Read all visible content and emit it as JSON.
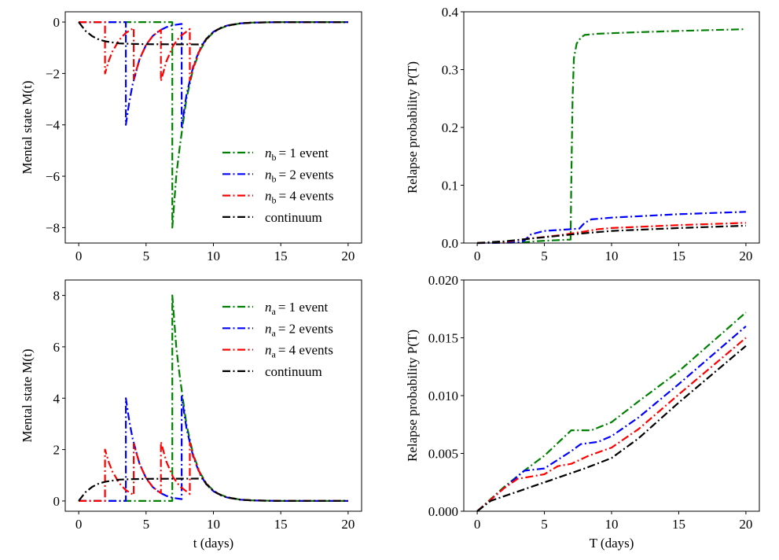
{
  "chart_data": [
    {
      "type": "line",
      "panel": "top-left",
      "ylabel": "Mental state M(t)",
      "xlabel": "",
      "xlim": [
        -1,
        21
      ],
      "ylim": [
        -8.6,
        0.4
      ],
      "xticks": [
        "0",
        "5",
        "10",
        "15",
        "20"
      ],
      "yticks": [
        "0",
        "−2",
        "−4",
        "−6",
        "−8"
      ],
      "ytick_values": [
        0,
        -2,
        -4,
        -6,
        -8
      ],
      "xtick_values": [
        0,
        5,
        10,
        15,
        20
      ],
      "legend_position": "lower-right",
      "series": [
        {
          "name": "n_b = 1 event",
          "legend": {
            "var": "n",
            "sub": "b",
            "text": "= 1 event"
          },
          "color": "#008000",
          "x": [
            0,
            6.95,
            6.95,
            7.25,
            7.5,
            8,
            8.5,
            9,
            9.5,
            10,
            10.5,
            11,
            12,
            13,
            15,
            20
          ],
          "y": [
            0,
            0,
            -8,
            -5.93,
            -4.85,
            -2.98,
            -1.81,
            -1.1,
            -0.67,
            -0.4,
            -0.25,
            -0.15,
            -0.05,
            -0.02,
            0,
            0
          ]
        },
        {
          "name": "n_b = 2 events",
          "legend": {
            "var": "n",
            "sub": "b",
            "text": "= 2 events"
          },
          "color": "#0000ff",
          "x": [
            0,
            3.5,
            3.5,
            3.75,
            4,
            4.5,
            5,
            5.5,
            6,
            6.5,
            7,
            7.64,
            7.64,
            8,
            8.5,
            9,
            9.5,
            10,
            10.5,
            11,
            12,
            13,
            15,
            20
          ],
          "y": [
            0,
            0,
            -4,
            -3.12,
            -2.43,
            -1.47,
            -0.89,
            -0.54,
            -0.33,
            -0.2,
            -0.12,
            -0.07,
            -4.07,
            -2.84,
            -1.72,
            -1.04,
            -0.63,
            -0.38,
            -0.23,
            -0.14,
            -0.05,
            -0.02,
            0,
            0
          ]
        },
        {
          "name": "n_b = 4 events",
          "legend": {
            "var": "n",
            "sub": "b",
            "text": "= 4 events"
          },
          "color": "#ff0000",
          "x": [
            0,
            1.95,
            1.95,
            2.25,
            2.5,
            3,
            3.5,
            4.08,
            4.08,
            4.5,
            5,
            5.5,
            6.1,
            6.1,
            6.5,
            7,
            7.5,
            8.25,
            8.25,
            8.5,
            9,
            9.5,
            10,
            10.5,
            11,
            12,
            13,
            15,
            20
          ],
          "y": [
            0,
            0,
            -2,
            -1.48,
            -1.15,
            -0.7,
            -0.42,
            -0.23,
            -2.23,
            -1.46,
            -0.89,
            -0.54,
            -0.3,
            -2.3,
            -1.54,
            -0.93,
            -0.57,
            -0.27,
            -2.27,
            -1.77,
            -1.07,
            -0.65,
            -0.39,
            -0.24,
            -0.14,
            -0.05,
            -0.02,
            0,
            0
          ]
        },
        {
          "name": "continuum",
          "legend": {
            "var": "",
            "sub": "",
            "text": "continuum"
          },
          "color": "#000000",
          "x": [
            0,
            0.5,
            1,
            1.5,
            2,
            3,
            4,
            5,
            9.2,
            9.5,
            10,
            10.5,
            11,
            12,
            13,
            15,
            20
          ],
          "y": [
            0,
            -0.34,
            -0.55,
            -0.68,
            -0.75,
            -0.83,
            -0.85,
            -0.86,
            -0.87,
            -0.64,
            -0.39,
            -0.24,
            -0.14,
            -0.05,
            -0.02,
            0,
            0
          ]
        }
      ]
    },
    {
      "type": "line",
      "panel": "top-right",
      "ylabel": "Relapse probability P(T)",
      "xlabel": "",
      "xlim": [
        -1,
        21
      ],
      "ylim": [
        0,
        0.4
      ],
      "xticks": [
        "0",
        "5",
        "10",
        "15",
        "20"
      ],
      "xtick_values": [
        0,
        5,
        10,
        15,
        20
      ],
      "yticks": [
        "0.0",
        "0.1",
        "0.2",
        "0.3",
        "0.4"
      ],
      "ytick_values": [
        0,
        0.1,
        0.2,
        0.3,
        0.4
      ],
      "series": [
        {
          "color": "#008000",
          "x": [
            0,
            3,
            5,
            6.95,
            7.0,
            7.1,
            7.2,
            7.4,
            7.7,
            8,
            9,
            11,
            15,
            20
          ],
          "y": [
            0,
            0.001,
            0.004,
            0.006,
            0.1,
            0.25,
            0.32,
            0.345,
            0.355,
            0.36,
            0.362,
            0.364,
            0.367,
            0.37
          ]
        },
        {
          "color": "#0000ff",
          "x": [
            0,
            3,
            3.5,
            4,
            5,
            7,
            7.6,
            8,
            8.5,
            10,
            15,
            20
          ],
          "y": [
            0,
            0.001,
            0.004,
            0.015,
            0.021,
            0.024,
            0.025,
            0.035,
            0.041,
            0.044,
            0.05,
            0.054
          ]
        },
        {
          "color": "#ff0000",
          "x": [
            0,
            2,
            4,
            6,
            8,
            9,
            10,
            15,
            20
          ],
          "y": [
            0,
            0.002,
            0.008,
            0.013,
            0.02,
            0.024,
            0.026,
            0.031,
            0.035
          ]
        },
        {
          "color": "#000000",
          "x": [
            0,
            2,
            5,
            8,
            10,
            15,
            20
          ],
          "y": [
            0,
            0.003,
            0.01,
            0.017,
            0.021,
            0.026,
            0.03
          ]
        }
      ]
    },
    {
      "type": "line",
      "panel": "bottom-left",
      "ylabel": "Mental state M(t)",
      "xlabel": "t (days)",
      "xlim": [
        -1,
        21
      ],
      "ylim": [
        -0.4,
        8.6
      ],
      "xticks": [
        "0",
        "5",
        "10",
        "15",
        "20"
      ],
      "xtick_values": [
        0,
        5,
        10,
        15,
        20
      ],
      "yticks": [
        "0",
        "2",
        "4",
        "6",
        "8"
      ],
      "ytick_values": [
        0,
        2,
        4,
        6,
        8
      ],
      "legend_position": "upper-right",
      "series": [
        {
          "name": "n_a = 1 event",
          "legend": {
            "var": "n",
            "sub": "a",
            "text": "= 1 event"
          },
          "color": "#008000",
          "x": [
            0,
            6.95,
            6.95,
            7.25,
            7.5,
            8,
            8.5,
            9,
            9.5,
            10,
            10.5,
            11,
            12,
            13,
            15,
            20
          ],
          "y": [
            0,
            0,
            8,
            5.93,
            4.85,
            2.98,
            1.81,
            1.1,
            0.67,
            0.4,
            0.25,
            0.15,
            0.05,
            0.02,
            0,
            0
          ]
        },
        {
          "name": "n_a = 2 events",
          "legend": {
            "var": "n",
            "sub": "a",
            "text": "= 2 events"
          },
          "color": "#0000ff",
          "x": [
            0,
            3.5,
            3.5,
            3.75,
            4,
            4.5,
            5,
            5.5,
            6,
            6.5,
            7,
            7.64,
            7.64,
            8,
            8.5,
            9,
            9.5,
            10,
            10.5,
            11,
            12,
            13,
            15,
            20
          ],
          "y": [
            0,
            0,
            4,
            3.12,
            2.43,
            1.47,
            0.89,
            0.54,
            0.33,
            0.2,
            0.12,
            0.07,
            4.07,
            2.84,
            1.72,
            1.04,
            0.63,
            0.38,
            0.23,
            0.14,
            0.05,
            0.02,
            0,
            0
          ]
        },
        {
          "name": "n_a = 4 events",
          "legend": {
            "var": "n",
            "sub": "a",
            "text": "= 4 events"
          },
          "color": "#ff0000",
          "x": [
            0,
            1.95,
            1.95,
            2.25,
            2.5,
            3,
            3.5,
            4.08,
            4.08,
            4.5,
            5,
            5.5,
            6.1,
            6.1,
            6.5,
            7,
            7.5,
            8.25,
            8.25,
            8.5,
            9,
            9.5,
            10,
            10.5,
            11,
            12,
            13,
            15,
            20
          ],
          "y": [
            0,
            0,
            2,
            1.48,
            1.15,
            0.7,
            0.42,
            0.23,
            2.23,
            1.46,
            0.89,
            0.54,
            0.3,
            2.3,
            1.54,
            0.93,
            0.57,
            0.27,
            2.27,
            1.77,
            1.07,
            0.65,
            0.39,
            0.24,
            0.14,
            0.05,
            0.02,
            0,
            0
          ]
        },
        {
          "name": "continuum",
          "legend": {
            "var": "",
            "sub": "",
            "text": "continuum"
          },
          "color": "#000000",
          "x": [
            0,
            0.5,
            1,
            1.5,
            2,
            3,
            4,
            5,
            9.2,
            9.5,
            10,
            10.5,
            11,
            12,
            13,
            15,
            20
          ],
          "y": [
            0,
            0.34,
            0.55,
            0.68,
            0.75,
            0.83,
            0.85,
            0.86,
            0.87,
            0.64,
            0.39,
            0.24,
            0.14,
            0.05,
            0.02,
            0,
            0
          ]
        }
      ]
    },
    {
      "type": "line",
      "panel": "bottom-right",
      "ylabel": "Relapse probability P(T)",
      "xlabel": "T (days)",
      "xlim": [
        -1,
        21
      ],
      "ylim": [
        0,
        0.02
      ],
      "xticks": [
        "0",
        "5",
        "10",
        "15",
        "20"
      ],
      "xtick_values": [
        0,
        5,
        10,
        15,
        20
      ],
      "yticks": [
        "0.000",
        "0.005",
        "0.010",
        "0.015",
        "0.020"
      ],
      "ytick_values": [
        0,
        0.005,
        0.01,
        0.015,
        0.02
      ],
      "series": [
        {
          "color": "#008000",
          "x": [
            0,
            2,
            3.5,
            5,
            7,
            8.5,
            10,
            12,
            15,
            20
          ],
          "y": [
            0,
            0.0021,
            0.0035,
            0.0048,
            0.007,
            0.007,
            0.0077,
            0.0095,
            0.0121,
            0.0172
          ]
        },
        {
          "color": "#0000ff",
          "x": [
            0,
            2,
            3.5,
            5,
            7,
            7.7,
            9,
            10,
            12,
            15,
            20
          ],
          "y": [
            0,
            0.002,
            0.0035,
            0.0037,
            0.0052,
            0.0058,
            0.006,
            0.0065,
            0.0081,
            0.011,
            0.016
          ]
        },
        {
          "color": "#ff0000",
          "x": [
            0,
            2,
            3,
            4,
            5,
            6,
            7,
            8.3,
            10,
            12,
            15,
            20
          ],
          "y": [
            0,
            0.002,
            0.0028,
            0.003,
            0.0032,
            0.0039,
            0.0041,
            0.0048,
            0.0055,
            0.0071,
            0.0101,
            0.015
          ]
        },
        {
          "color": "#000000",
          "x": [
            0,
            1,
            5,
            8,
            10,
            12,
            15,
            20
          ],
          "y": [
            0,
            0.0009,
            0.0025,
            0.0037,
            0.0046,
            0.0063,
            0.0094,
            0.0143
          ]
        }
      ]
    }
  ]
}
